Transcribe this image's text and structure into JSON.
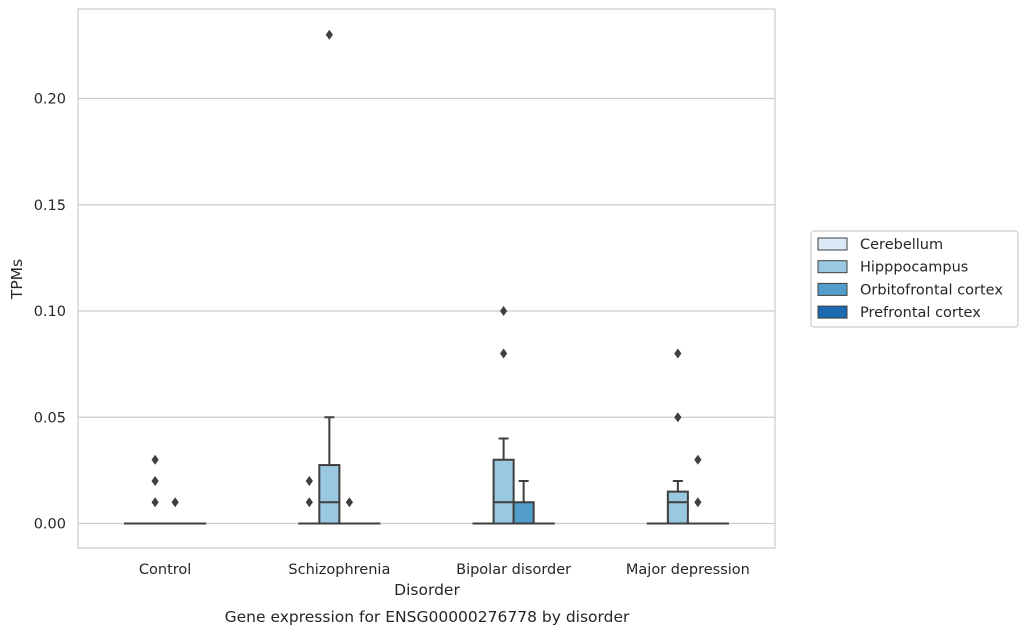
{
  "chart_data": {
    "type": "box",
    "caption": "Gene expression for ENSG00000276778 by disorder",
    "xlabel": "Disorder",
    "ylabel": "TPMs",
    "ylim": [
      -0.011,
      0.242
    ],
    "yticks": [
      0.0,
      0.05,
      0.1,
      0.15,
      0.2
    ],
    "ytick_labels": [
      "0.00",
      "0.05",
      "0.10",
      "0.15",
      "0.20"
    ],
    "grid": "horizontal",
    "legend_position": "right",
    "categories": [
      "Control",
      "Schizophrenia",
      "Bipolar disorder",
      "Major depression"
    ],
    "series": [
      {
        "name": "Cerebellum",
        "color": "#dbe9f6",
        "boxes": [
          {
            "q1": 0,
            "median": 0,
            "q3": 0,
            "whislo": 0,
            "whishi": 0,
            "fliers": []
          },
          {
            "q1": 0,
            "median": 0,
            "q3": 0,
            "whislo": 0,
            "whishi": 0,
            "fliers": []
          },
          {
            "q1": 0,
            "median": 0,
            "q3": 0,
            "whislo": 0,
            "whishi": 0,
            "fliers": []
          },
          {
            "q1": 0,
            "median": 0,
            "q3": 0,
            "whislo": 0,
            "whishi": 0,
            "fliers": []
          }
        ]
      },
      {
        "name": "Hipppocampus",
        "color": "#9ac8e0",
        "boxes": [
          {
            "q1": 0,
            "median": 0,
            "q3": 0,
            "whislo": 0,
            "whishi": 0,
            "fliers": [
              0.01,
              0.02,
              0.03
            ]
          },
          {
            "q1": 0,
            "median": 0.01,
            "q3": 0.0275,
            "whislo": 0,
            "whishi": 0.05,
            "fliers": [
              0.23
            ]
          },
          {
            "q1": 0,
            "median": 0.01,
            "q3": 0.03,
            "whislo": 0,
            "whishi": 0.04,
            "fliers": [
              0.08,
              0.1
            ]
          },
          {
            "q1": 0,
            "median": 0.01,
            "q3": 0.015,
            "whislo": 0,
            "whishi": 0.02,
            "fliers": [
              0.05,
              0.08
            ]
          }
        ]
      },
      {
        "name": "Orbitofrontal cortex",
        "color": "#529dcc",
        "boxes": [
          {
            "q1": 0,
            "median": 0,
            "q3": 0,
            "whislo": 0,
            "whishi": 0,
            "fliers": [
              0.01
            ]
          },
          {
            "q1": 0,
            "median": 0,
            "q3": 0,
            "whislo": 0,
            "whishi": 0,
            "fliers": [
              0.01
            ]
          },
          {
            "q1": 0,
            "median": 0,
            "q3": 0.01,
            "whislo": 0,
            "whishi": 0.02,
            "fliers": []
          },
          {
            "q1": 0,
            "median": 0,
            "q3": 0,
            "whislo": 0,
            "whishi": 0,
            "fliers": [
              0.01,
              0.03
            ]
          }
        ]
      },
      {
        "name": "Prefrontal cortex",
        "color": "#1c6aaf",
        "boxes": [
          {
            "q1": 0,
            "median": 0,
            "q3": 0,
            "whislo": 0,
            "whishi": 0,
            "fliers": []
          },
          {
            "q1": 0,
            "median": 0,
            "q3": 0,
            "whislo": 0,
            "whishi": 0,
            "fliers": []
          },
          {
            "q1": 0,
            "median": 0,
            "q3": 0,
            "whislo": 0,
            "whishi": 0,
            "fliers": []
          },
          {
            "q1": 0,
            "median": 0,
            "q3": 0,
            "whislo": 0,
            "whishi": 0,
            "fliers": []
          }
        ]
      }
    ],
    "extra_fliers": [
      {
        "category": 1,
        "series": 0,
        "values": [
          0.01,
          0.02
        ]
      }
    ]
  }
}
